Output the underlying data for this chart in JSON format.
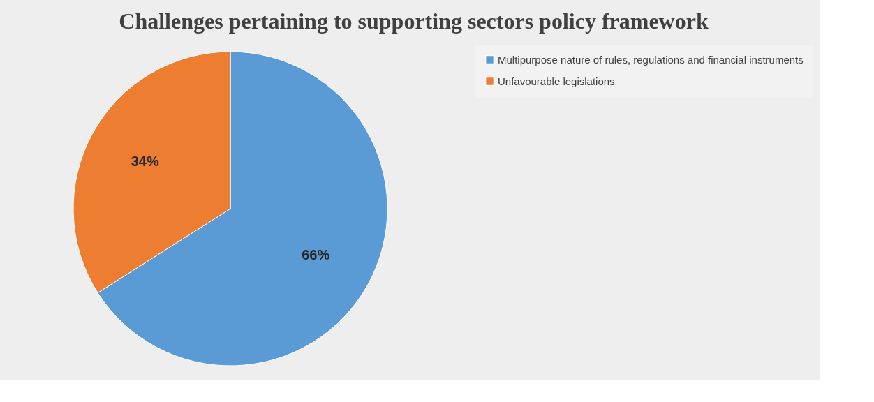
{
  "chart_data": {
    "type": "pie",
    "title": "Challenges pertaining to supporting sectors policy framework",
    "categories": [
      "Multipurpose nature of rules, regulations and financial instruments",
      "Unfavourable legislations"
    ],
    "values": [
      66,
      34
    ],
    "colors": [
      "#5b9bd5",
      "#ed7d31"
    ],
    "value_labels": [
      "66%",
      "34%"
    ],
    "legend": "right"
  }
}
